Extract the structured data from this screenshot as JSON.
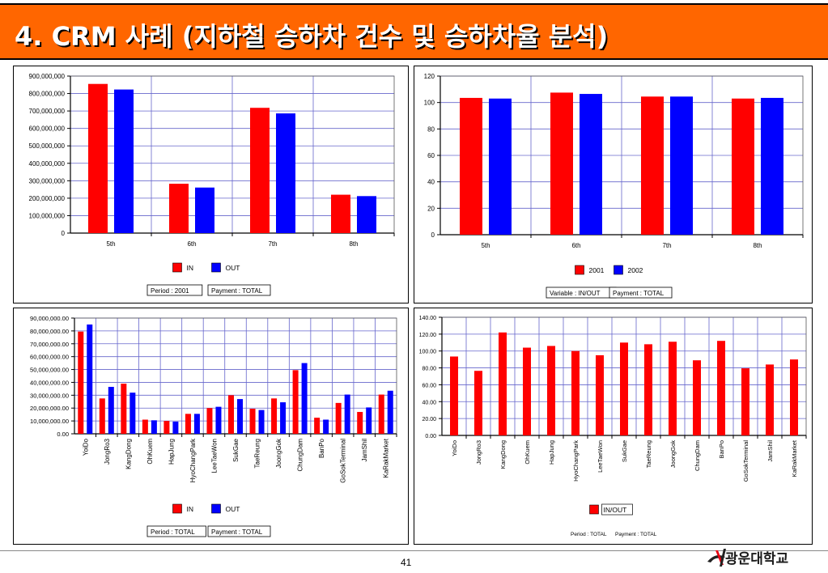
{
  "slide": {
    "title": "4. CRM 사례 (지하철 승하차 건수 및 승하차율 분석)",
    "page_number": "41",
    "logo_text": "광운대학교"
  },
  "colors": {
    "red": "#ff0000",
    "blue": "#0000ff",
    "orange": "#ff6600",
    "grid": "#6666cc"
  },
  "chart_data": [
    {
      "type": "bar",
      "categories": [
        "5th",
        "6th",
        "7th",
        "8th"
      ],
      "series": [
        {
          "name": "IN",
          "color": "#ff0000",
          "values": [
            855000000,
            283000000,
            718000000,
            220000000
          ]
        },
        {
          "name": "OUT",
          "color": "#0000ff",
          "values": [
            823000000,
            261000000,
            686000000,
            212000000
          ]
        }
      ],
      "ylim": [
        0,
        900000000
      ],
      "yticks": [
        "0",
        "100,000,000",
        "200,000,000",
        "300,000,000",
        "400,000,000",
        "500,000,000",
        "600,000,000",
        "700,000,000",
        "800,000,000",
        "900,000,000"
      ],
      "grid": true,
      "legend": "bottom-center",
      "footer": [
        "Period : 2001",
        "Payment : TOTAL"
      ]
    },
    {
      "type": "bar",
      "categories": [
        "5th",
        "6th",
        "7th",
        "8th"
      ],
      "series": [
        {
          "name": "2001",
          "color": "#ff0000",
          "values": [
            103.5,
            107.5,
            104.5,
            103
          ]
        },
        {
          "name": "2002",
          "color": "#0000ff",
          "values": [
            103,
            106.5,
            104.5,
            103.5
          ]
        }
      ],
      "ylim": [
        0,
        120
      ],
      "yticks": [
        "0",
        "20",
        "40",
        "60",
        "80",
        "100",
        "120"
      ],
      "grid": true,
      "legend": "bottom-center",
      "footer": [
        "Variable : IN/OUT",
        "Payment : TOTAL"
      ]
    },
    {
      "type": "bar",
      "categories": [
        "YoiDo",
        "JongRo3",
        "KangDong",
        "OhKuem",
        "HapJung",
        "HyoChangPark",
        "LeeTaeWon",
        "SukGae",
        "TaeReung",
        "JoongGok",
        "ChungDam",
        "BanPo",
        "GoSokTerminal",
        "JamShil",
        "KaRakMarket"
      ],
      "series": [
        {
          "name": "IN",
          "color": "#ff0000",
          "values": [
            79500000,
            27500000,
            39000000,
            11000000,
            10000000,
            15500000,
            20000000,
            30000000,
            19500000,
            27500000,
            49500000,
            12500000,
            24000000,
            17000000,
            30500000
          ]
        },
        {
          "name": "OUT",
          "color": "#0000ff",
          "values": [
            85000000,
            36500000,
            32000000,
            10500000,
            9500000,
            15500000,
            21000000,
            27000000,
            18500000,
            24500000,
            55000000,
            11000000,
            30500000,
            20500000,
            33500000
          ]
        }
      ],
      "ylim": [
        0,
        90000000
      ],
      "yticks": [
        "0.00",
        "10,000,000.00",
        "20,000,000.00",
        "30,000,000.00",
        "40,000,000.00",
        "50,000,000.00",
        "60,000,000.00",
        "70,000,000.00",
        "80,000,000.00",
        "90,000,000.00"
      ],
      "grid": true,
      "legend": "bottom-center",
      "footer": [
        "Period : TOTAL",
        "Payment : TOTAL"
      ]
    },
    {
      "type": "bar",
      "categories": [
        "YoiDo",
        "JongRo3",
        "KangDong",
        "OhKuem",
        "HapJung",
        "HyoChangPark",
        "LeeTaeWon",
        "SukGae",
        "TaeReung",
        "JoongGok",
        "ChungDam",
        "BanPo",
        "GoSokTerminal",
        "JamShil",
        "KaRakMarket"
      ],
      "series": [
        {
          "name": "IN/OUT",
          "color": "#ff0000",
          "values": [
            93.5,
            76.5,
            122,
            104,
            106,
            100,
            95,
            110,
            108,
            111,
            89,
            112,
            79.5,
            84,
            90
          ]
        }
      ],
      "ylim": [
        0,
        140
      ],
      "yticks": [
        "0.00",
        "20.00",
        "40.00",
        "60.00",
        "80.00",
        "100.00",
        "120.00",
        "140.00"
      ],
      "grid": true,
      "legend": "bottom-center",
      "footer": [
        "Period : TOTAL",
        "Payment : TOTAL"
      ]
    }
  ]
}
